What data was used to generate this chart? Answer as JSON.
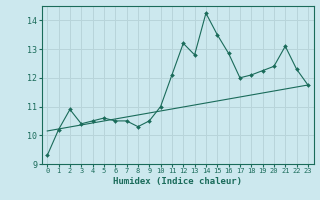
{
  "title": "",
  "xlabel": "Humidex (Indice chaleur)",
  "bg_color": "#cce8ee",
  "grid_color": "#b8d4da",
  "line_color": "#1a6b5a",
  "xlim": [
    -0.5,
    23.5
  ],
  "ylim": [
    9,
    14.5
  ],
  "yticks": [
    9,
    10,
    11,
    12,
    13,
    14
  ],
  "xticks": [
    0,
    1,
    2,
    3,
    4,
    5,
    6,
    7,
    8,
    9,
    10,
    11,
    12,
    13,
    14,
    15,
    16,
    17,
    18,
    19,
    20,
    21,
    22,
    23
  ],
  "data_line": [
    9.3,
    10.2,
    10.9,
    10.4,
    10.5,
    10.6,
    10.5,
    10.5,
    10.3,
    10.5,
    11.0,
    12.1,
    13.2,
    12.8,
    14.25,
    13.5,
    12.85,
    12.0,
    12.1,
    12.25,
    12.4,
    13.1,
    12.3,
    11.75
  ],
  "trend_line_x": [
    0,
    23
  ],
  "trend_line_y": [
    10.15,
    11.75
  ]
}
